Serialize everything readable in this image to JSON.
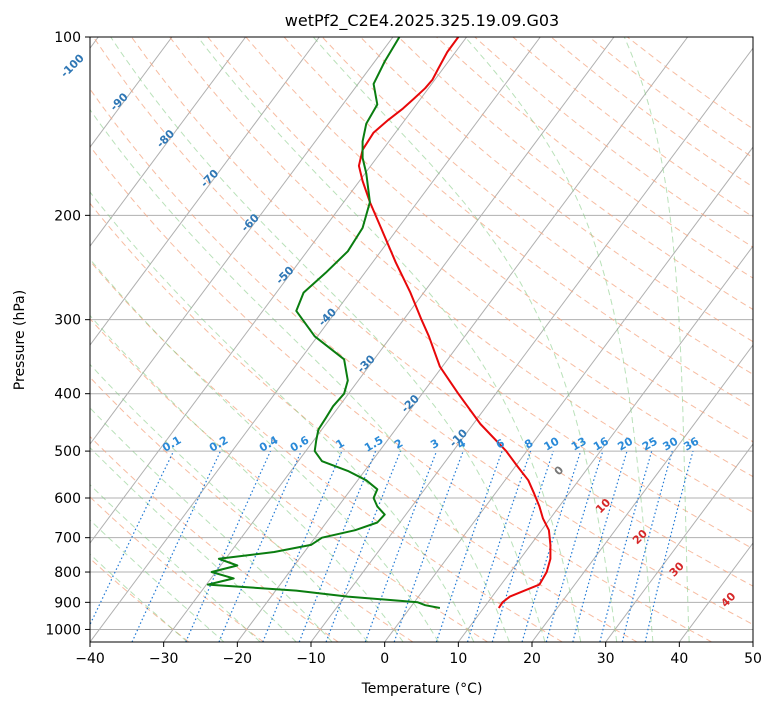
{
  "title": "wetPf2_C2E4.2025.325.19.09.G03",
  "chart_data": {
    "type": "skew-t",
    "title": "wetPf2_C2E4.2025.325.19.09.G03",
    "xlabel": "Temperature (°C)",
    "ylabel": "Pressure (hPa)",
    "xlim": [
      -40,
      50
    ],
    "ylim": [
      1050,
      100
    ],
    "y_scale": "log",
    "grid": true,
    "x_ticks": [
      "−40",
      "−30",
      "−20",
      "−10",
      "0",
      "10",
      "20",
      "30",
      "40",
      "50"
    ],
    "y_ticks": [
      "100",
      "200",
      "300",
      "400",
      "500",
      "600",
      "700",
      "800",
      "900",
      "1000"
    ],
    "series": [
      {
        "color": "#e8080a",
        "x": [
          15.5,
          16.0,
          17.0,
          19.0,
          21.0,
          22.0,
          22.5,
          22.5,
          22.3,
          21.5,
          21.0,
          20.3,
          19.5,
          18.0,
          16.5,
          13.0,
          10.0,
          7.5,
          6.0,
          5.0,
          3.5,
          1.5,
          -0.5,
          -2.0,
          -3.0,
          -3.5,
          -3.0,
          -1.5,
          0.5,
          2.5,
          4.0,
          5.5,
          6.5,
          7.3,
          8.5,
          10.0
        ],
        "y": [
          920,
          900,
          880,
          860,
          840,
          800,
          760,
          720,
          680,
          650,
          620,
          590,
          560,
          530,
          500,
          450,
          400,
          360,
          320,
          300,
          270,
          240,
          210,
          190,
          175,
          165,
          155,
          145,
          138,
          132,
          127,
          122,
          118,
          113,
          106,
          100
        ]
      },
      {
        "color": "#0a7d10",
        "x": [
          7.5,
          5.5,
          4.5,
          -5.0,
          -12.0,
          -24.0,
          -20.5,
          -23.5,
          -20.0,
          -22.5,
          -15.0,
          -10.0,
          -8.5,
          -4.0,
          -1.0,
          0.0,
          -1.0,
          -1.5,
          -1.0,
          -2.5,
          -5.0,
          -8.5,
          -9.5,
          -9.3,
          -9.0,
          -8.0,
          -7.0,
          -5.5,
          -5.0,
          -5.5,
          -9.5,
          -12.0,
          -11.0,
          -8.0,
          -5.0,
          -3.0,
          -2.0,
          -2.5,
          -3.0,
          -3.0,
          -2.5,
          -1.0,
          -1.5,
          0.0,
          2.0
        ],
        "y": [
          920,
          910,
          900,
          880,
          860,
          840,
          820,
          800,
          780,
          760,
          740,
          720,
          700,
          680,
          660,
          640,
          620,
          600,
          580,
          560,
          540,
          520,
          500,
          480,
          460,
          440,
          420,
          400,
          380,
          350,
          320,
          290,
          270,
          250,
          230,
          210,
          190,
          170,
          160,
          150,
          140,
          130,
          120,
          110,
          100
        ]
      }
    ],
    "dry_adiabat_labels": [
      "-100",
      "-90",
      "-80",
      "-70",
      "-60",
      "-50",
      "-40",
      "-30",
      "-20",
      "-10"
    ],
    "moist_adiabat_labels": [
      "0",
      "10",
      "20",
      "30",
      "40"
    ],
    "mixing_ratio_labels": [
      "0.1",
      "0.2",
      "0.4",
      "0.6",
      "1",
      "1.5",
      "2",
      "3",
      "4",
      "6",
      "8",
      "10",
      "13",
      "16",
      "20",
      "25",
      "30",
      "36"
    ]
  }
}
